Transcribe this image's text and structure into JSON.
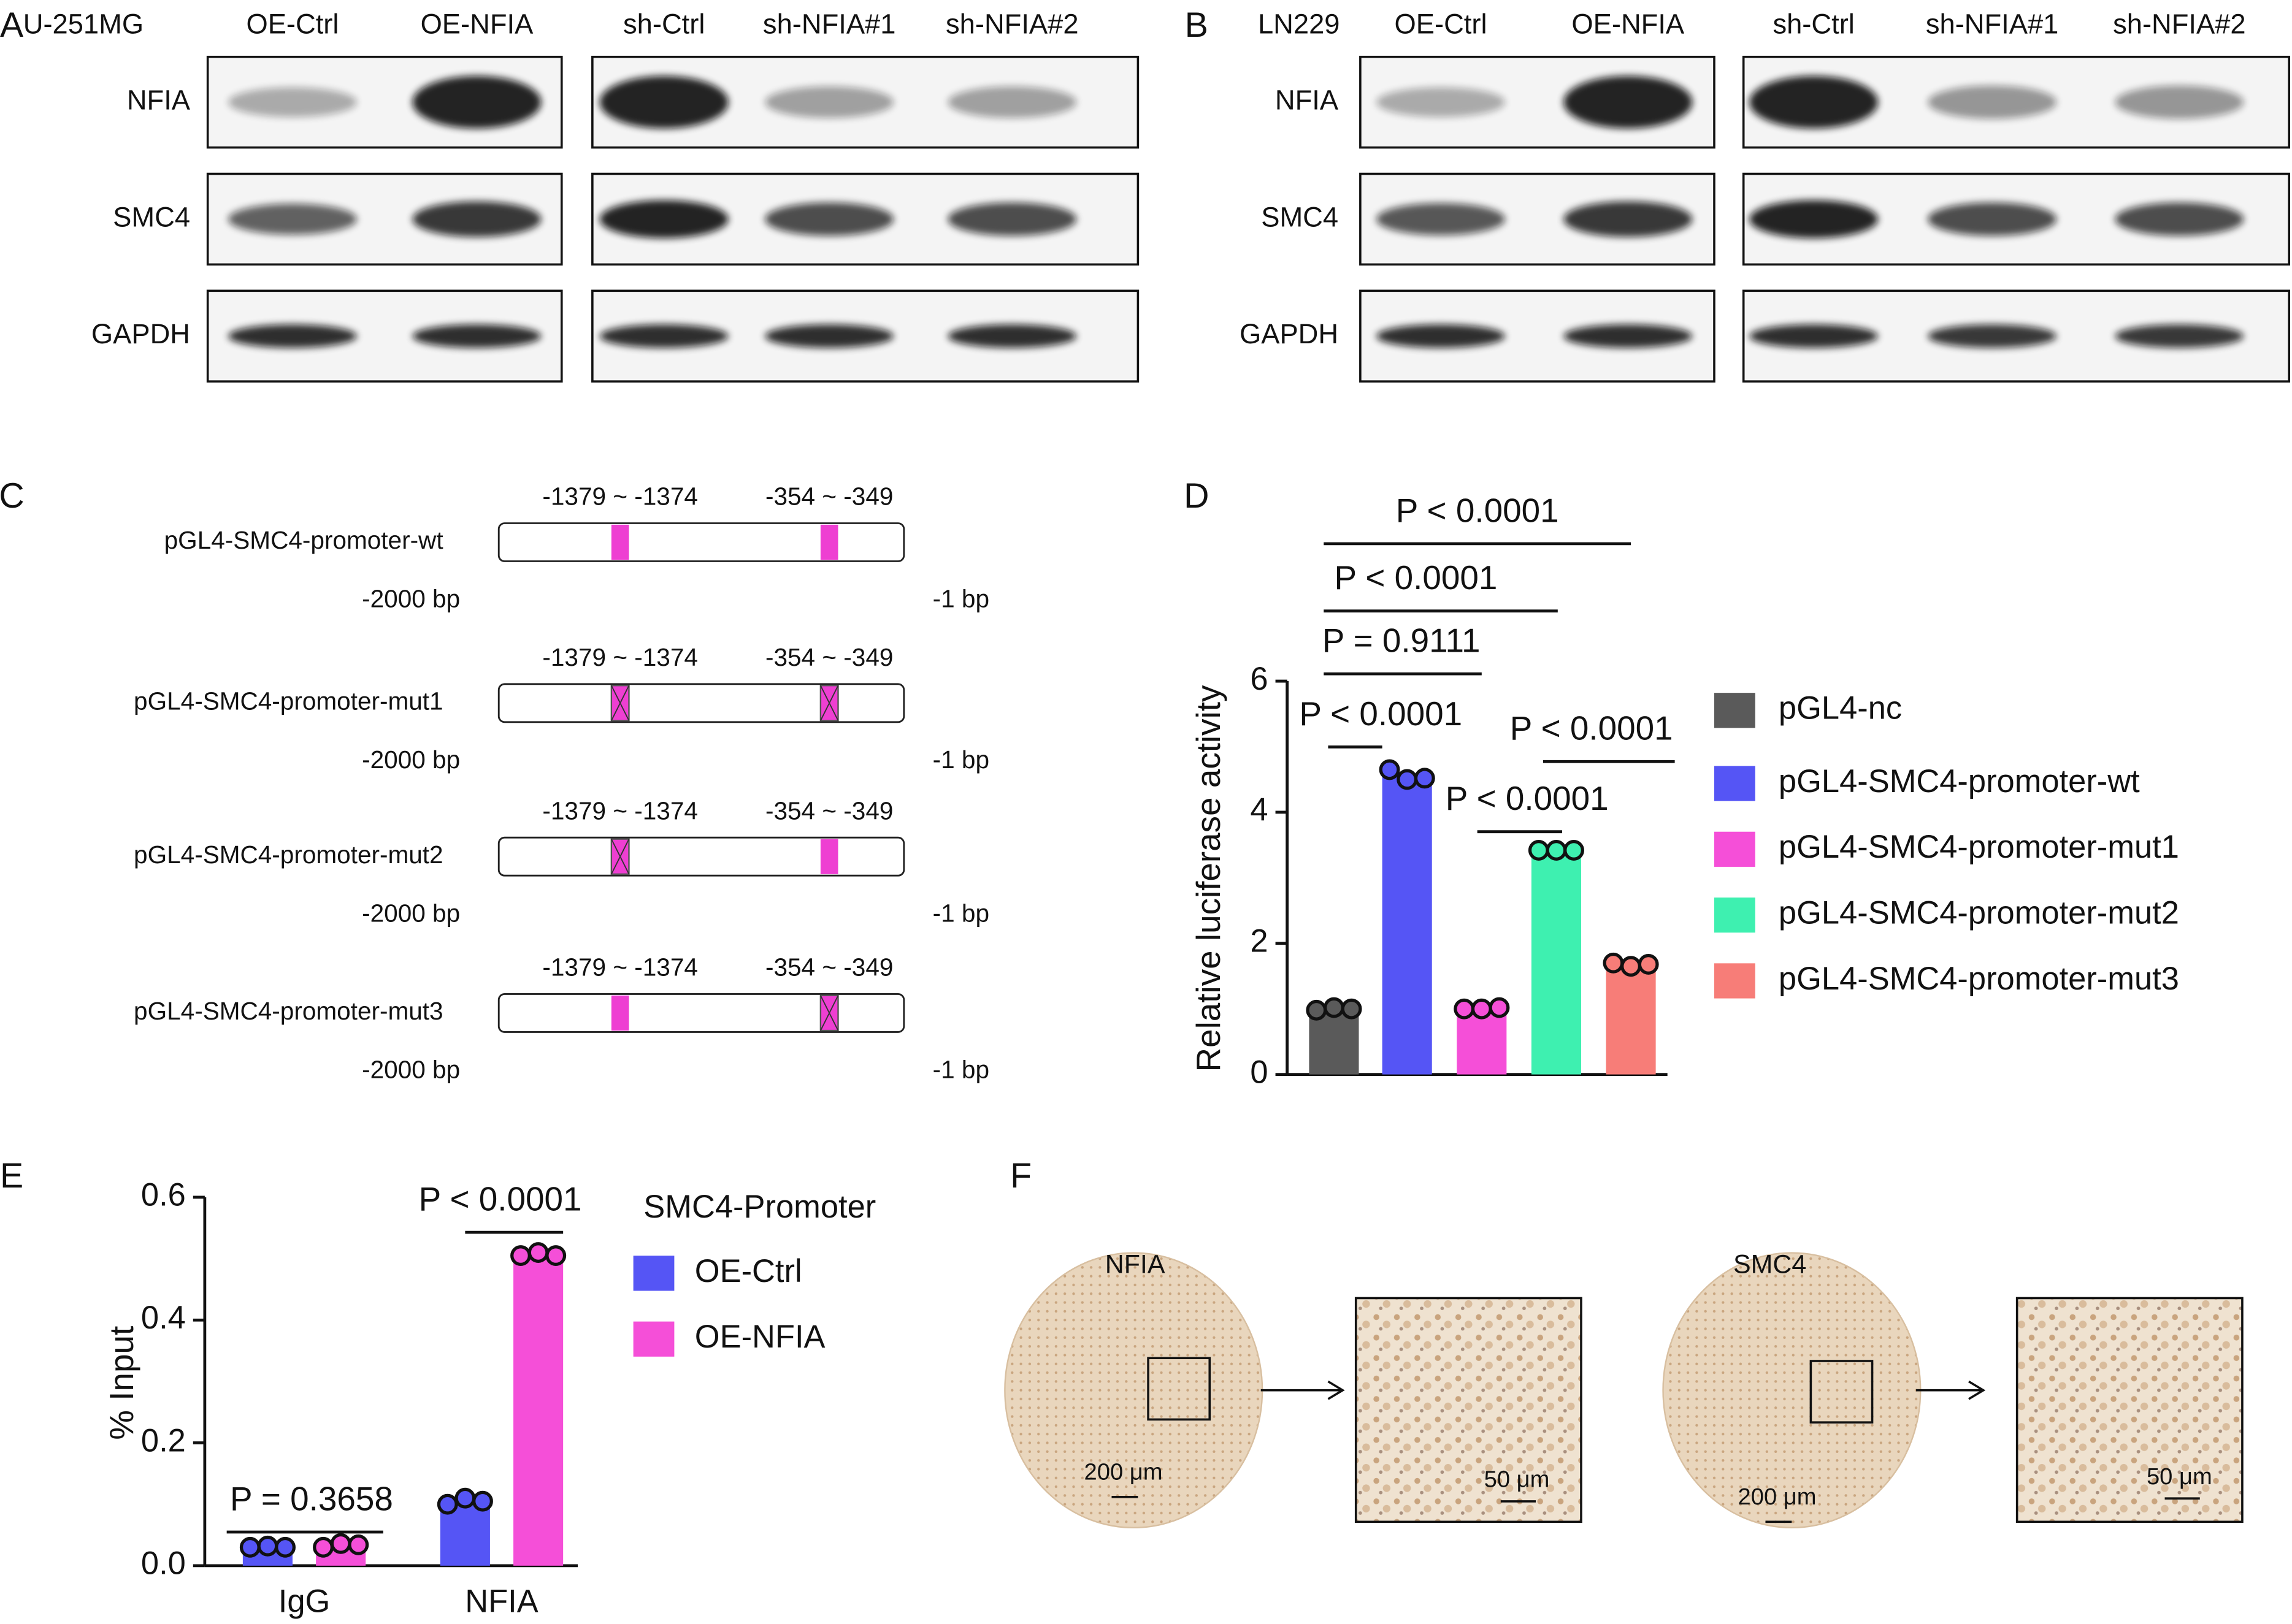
{
  "panel_labels": [
    "A",
    "B",
    "C",
    "D",
    "E",
    "F"
  ],
  "blots": [
    {
      "cell_line": "U-251MG",
      "lanes_left": [
        "OE-Ctrl",
        "OE-NFIA"
      ],
      "lanes_right": [
        "sh-Ctrl",
        "sh-NFIA#1",
        "sh-NFIA#2"
      ],
      "proteins": [
        "NFIA",
        "SMC4",
        "GAPDH"
      ]
    },
    {
      "cell_line": "LN229",
      "lanes_left": [
        "OE-Ctrl",
        "OE-NFIA"
      ],
      "lanes_right": [
        "sh-Ctrl",
        "sh-NFIA#1",
        "sh-NFIA#2"
      ],
      "proteins": [
        "NFIA",
        "SMC4",
        "GAPDH"
      ]
    }
  ],
  "promoter_constructs": [
    {
      "name": "pGL4-SMC4-promoter-wt",
      "site_labels": [
        "-1379 ~ -1374",
        "-354 ~ -349"
      ],
      "mutated": [
        false,
        false
      ],
      "ends": [
        "-2000 bp",
        "-1 bp"
      ]
    },
    {
      "name": "pGL4-SMC4-promoter-mut1",
      "site_labels": [
        "-1379 ~ -1374",
        "-354 ~ -349"
      ],
      "mutated": [
        true,
        true
      ],
      "ends": [
        "-2000 bp",
        "-1 bp"
      ]
    },
    {
      "name": "pGL4-SMC4-promoter-mut2",
      "site_labels": [
        "-1379 ~ -1374",
        "-354 ~ -349"
      ],
      "mutated": [
        true,
        false
      ],
      "ends": [
        "-2000 bp",
        "-1 bp"
      ]
    },
    {
      "name": "pGL4-SMC4-promoter-mut3",
      "site_labels": [
        "-1379 ~ -1374",
        "-354 ~ -349"
      ],
      "mutated": [
        false,
        true
      ],
      "ends": [
        "-2000 bp",
        "-1 bp"
      ]
    }
  ],
  "chart_data": [
    {
      "type": "bar",
      "y_label": "Relative luciferase activity",
      "categories": [
        "pGL4-nc",
        "pGL4-SMC4-promoter-wt",
        "pGL4-SMC4-promoter-mut1",
        "pGL4-SMC4-promoter-mut2",
        "pGL4-SMC4-promoter-mut3"
      ],
      "values": [
        1.0,
        4.55,
        1.0,
        3.4,
        1.68
      ],
      "points": [
        [
          0.98,
          1.02,
          1.0
        ],
        [
          4.65,
          4.5,
          4.52
        ],
        [
          1.0,
          1.0,
          1.02
        ],
        [
          3.42,
          3.42,
          3.42
        ],
        [
          1.7,
          1.65,
          1.68
        ]
      ],
      "colors": [
        "#5a5a5a",
        "#5555f5",
        "#f54fd8",
        "#3ef0b0",
        "#f77d78"
      ],
      "ylim": [
        0,
        6
      ],
      "yticks": [
        0,
        2,
        4,
        6
      ],
      "legend": "right",
      "annotations": [
        "P < 0.0001",
        "P < 0.0001",
        "P = 0.9111",
        "P < 0.0001",
        "P < 0.0001",
        "P < 0.0001"
      ]
    },
    {
      "type": "grouped_bar",
      "y_label": "% Input",
      "categories": [
        "IgG",
        "NFIA"
      ],
      "legend_title": "SMC4-Promoter",
      "series": [
        {
          "name": "OE-Ctrl",
          "color": "#5555f5",
          "values": [
            0.03,
            0.105
          ],
          "points": [
            [
              0.03,
              0.032,
              0.03
            ],
            [
              0.1,
              0.11,
              0.105
            ]
          ]
        },
        {
          "name": "OE-NFIA",
          "color": "#f54fd8",
          "values": [
            0.033,
            0.505
          ],
          "points": [
            [
              0.03,
              0.036,
              0.034
            ],
            [
              0.505,
              0.51,
              0.505
            ]
          ]
        }
      ],
      "ylim": [
        0,
        0.6
      ],
      "yticks": [
        {
          "value": 0,
          "label": "0.0"
        },
        0.2,
        0.4,
        0.6
      ],
      "legend": "right",
      "annotations": [
        "P = 0.3658",
        "P < 0.0001"
      ]
    }
  ],
  "ihc": [
    {
      "label": "NFIA",
      "scale_whole": "200 μm",
      "scale_zoom": "50 μm"
    },
    {
      "label": "SMC4",
      "scale_whole": "200 μm",
      "scale_zoom": "50 μm"
    }
  ]
}
